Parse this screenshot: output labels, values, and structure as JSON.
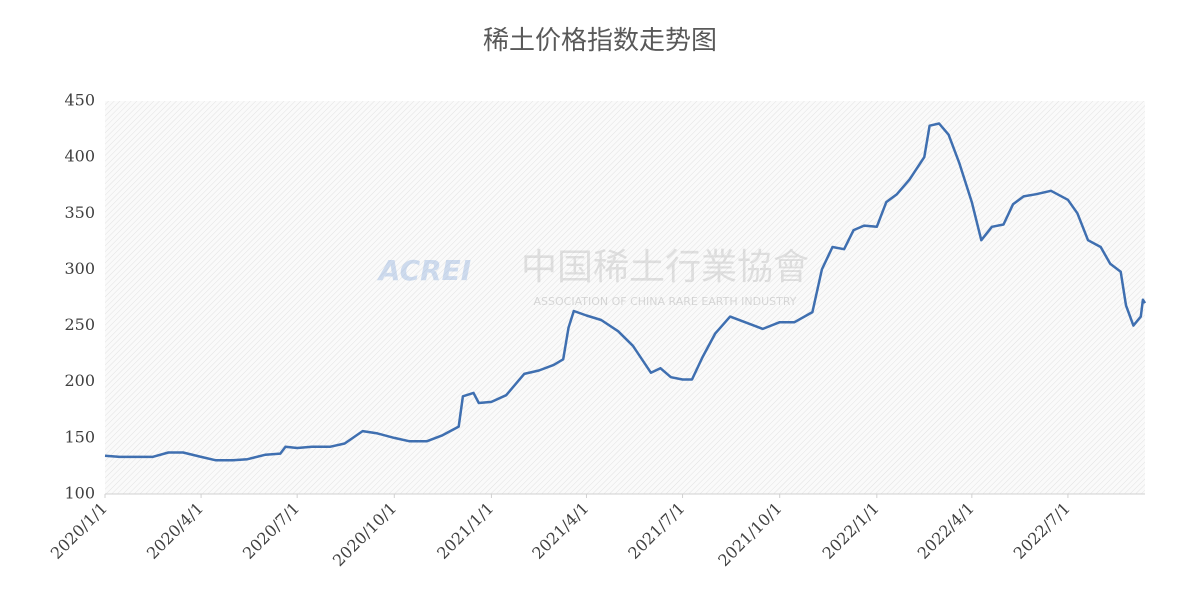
{
  "chart_data": {
    "type": "line",
    "title": "稀土价格指数走势图",
    "watermark": {
      "logo": "ACREI",
      "name": "中国稀土行業協會",
      "subtitle": "ASSOCIATION OF CHINA RARE EARTH INDUSTRY"
    },
    "x": [
      "2020/1/1",
      "2020/1/15",
      "2020/2/1",
      "2020/2/15",
      "2020/3/1",
      "2020/3/15",
      "2020/4/1",
      "2020/4/15",
      "2020/5/1",
      "2020/5/15",
      "2020/6/1",
      "2020/6/15",
      "2020/6/20",
      "2020/7/1",
      "2020/7/15",
      "2020/8/1",
      "2020/8/15",
      "2020/9/1",
      "2020/9/15",
      "2020/10/1",
      "2020/10/15",
      "2020/11/1",
      "2020/11/15",
      "2020/12/1",
      "2020/12/5",
      "2020/12/15",
      "2020/12/20",
      "2021/1/1",
      "2021/1/15",
      "2021/2/1",
      "2021/2/15",
      "2021/3/1",
      "2021/3/10",
      "2021/3/15",
      "2021/3/20",
      "2021/4/1",
      "2021/4/15",
      "2021/5/1",
      "2021/5/15",
      "2021/6/1",
      "2021/6/10",
      "2021/6/20",
      "2021/7/1",
      "2021/7/10",
      "2021/7/20",
      "2021/8/1",
      "2021/8/15",
      "2021/9/1",
      "2021/9/15",
      "2021/10/1",
      "2021/10/15",
      "2021/11/1",
      "2021/11/10",
      "2021/11/20",
      "2021/12/1",
      "2021/12/10",
      "2021/12/20",
      "2022/1/1",
      "2022/1/10",
      "2022/1/20",
      "2022/2/1",
      "2022/2/15",
      "2022/2/20",
      "2022/3/1",
      "2022/3/10",
      "2022/3/20",
      "2022/4/1",
      "2022/4/10",
      "2022/4/20",
      "2022/5/1",
      "2022/5/10",
      "2022/5/20",
      "2022/6/1",
      "2022/6/15",
      "2022/7/1",
      "2022/7/10",
      "2022/7/20",
      "2022/8/1",
      "2022/8/10",
      "2022/8/20",
      "2022/8/25",
      "2022/9/1",
      "2022/9/8",
      "2022/9/10",
      "2022/9/12"
    ],
    "series": [
      {
        "name": "稀土价格指数",
        "color": "#3f6fb0",
        "values": [
          134,
          133,
          133,
          133,
          137,
          137,
          133,
          130,
          130,
          131,
          135,
          136,
          142,
          141,
          142,
          142,
          145,
          156,
          154,
          150,
          147,
          147,
          152,
          160,
          187,
          190,
          181,
          182,
          188,
          207,
          210,
          215,
          220,
          248,
          263,
          259,
          255,
          245,
          232,
          208,
          212,
          204,
          202,
          202,
          222,
          243,
          258,
          252,
          247,
          253,
          253,
          262,
          300,
          320,
          318,
          335,
          339,
          338,
          360,
          367,
          380,
          400,
          428,
          430,
          420,
          395,
          360,
          326,
          338,
          340,
          358,
          365,
          367,
          370,
          362,
          350,
          326,
          320,
          305,
          298,
          268,
          250,
          258,
          273,
          270
        ]
      }
    ],
    "xlim": [
      "2020/1/1",
      "2022/9/12"
    ],
    "xticks": [
      "2020/1/1",
      "2020/4/1",
      "2020/7/1",
      "2020/10/1",
      "2021/1/1",
      "2021/4/1",
      "2021/7/1",
      "2021/10/1",
      "2022/1/1",
      "2022/4/1",
      "2022/7/1"
    ],
    "ylim": [
      100,
      450
    ],
    "yticks": [
      100,
      150,
      200,
      250,
      300,
      350,
      400,
      450
    ],
    "grid": false
  }
}
